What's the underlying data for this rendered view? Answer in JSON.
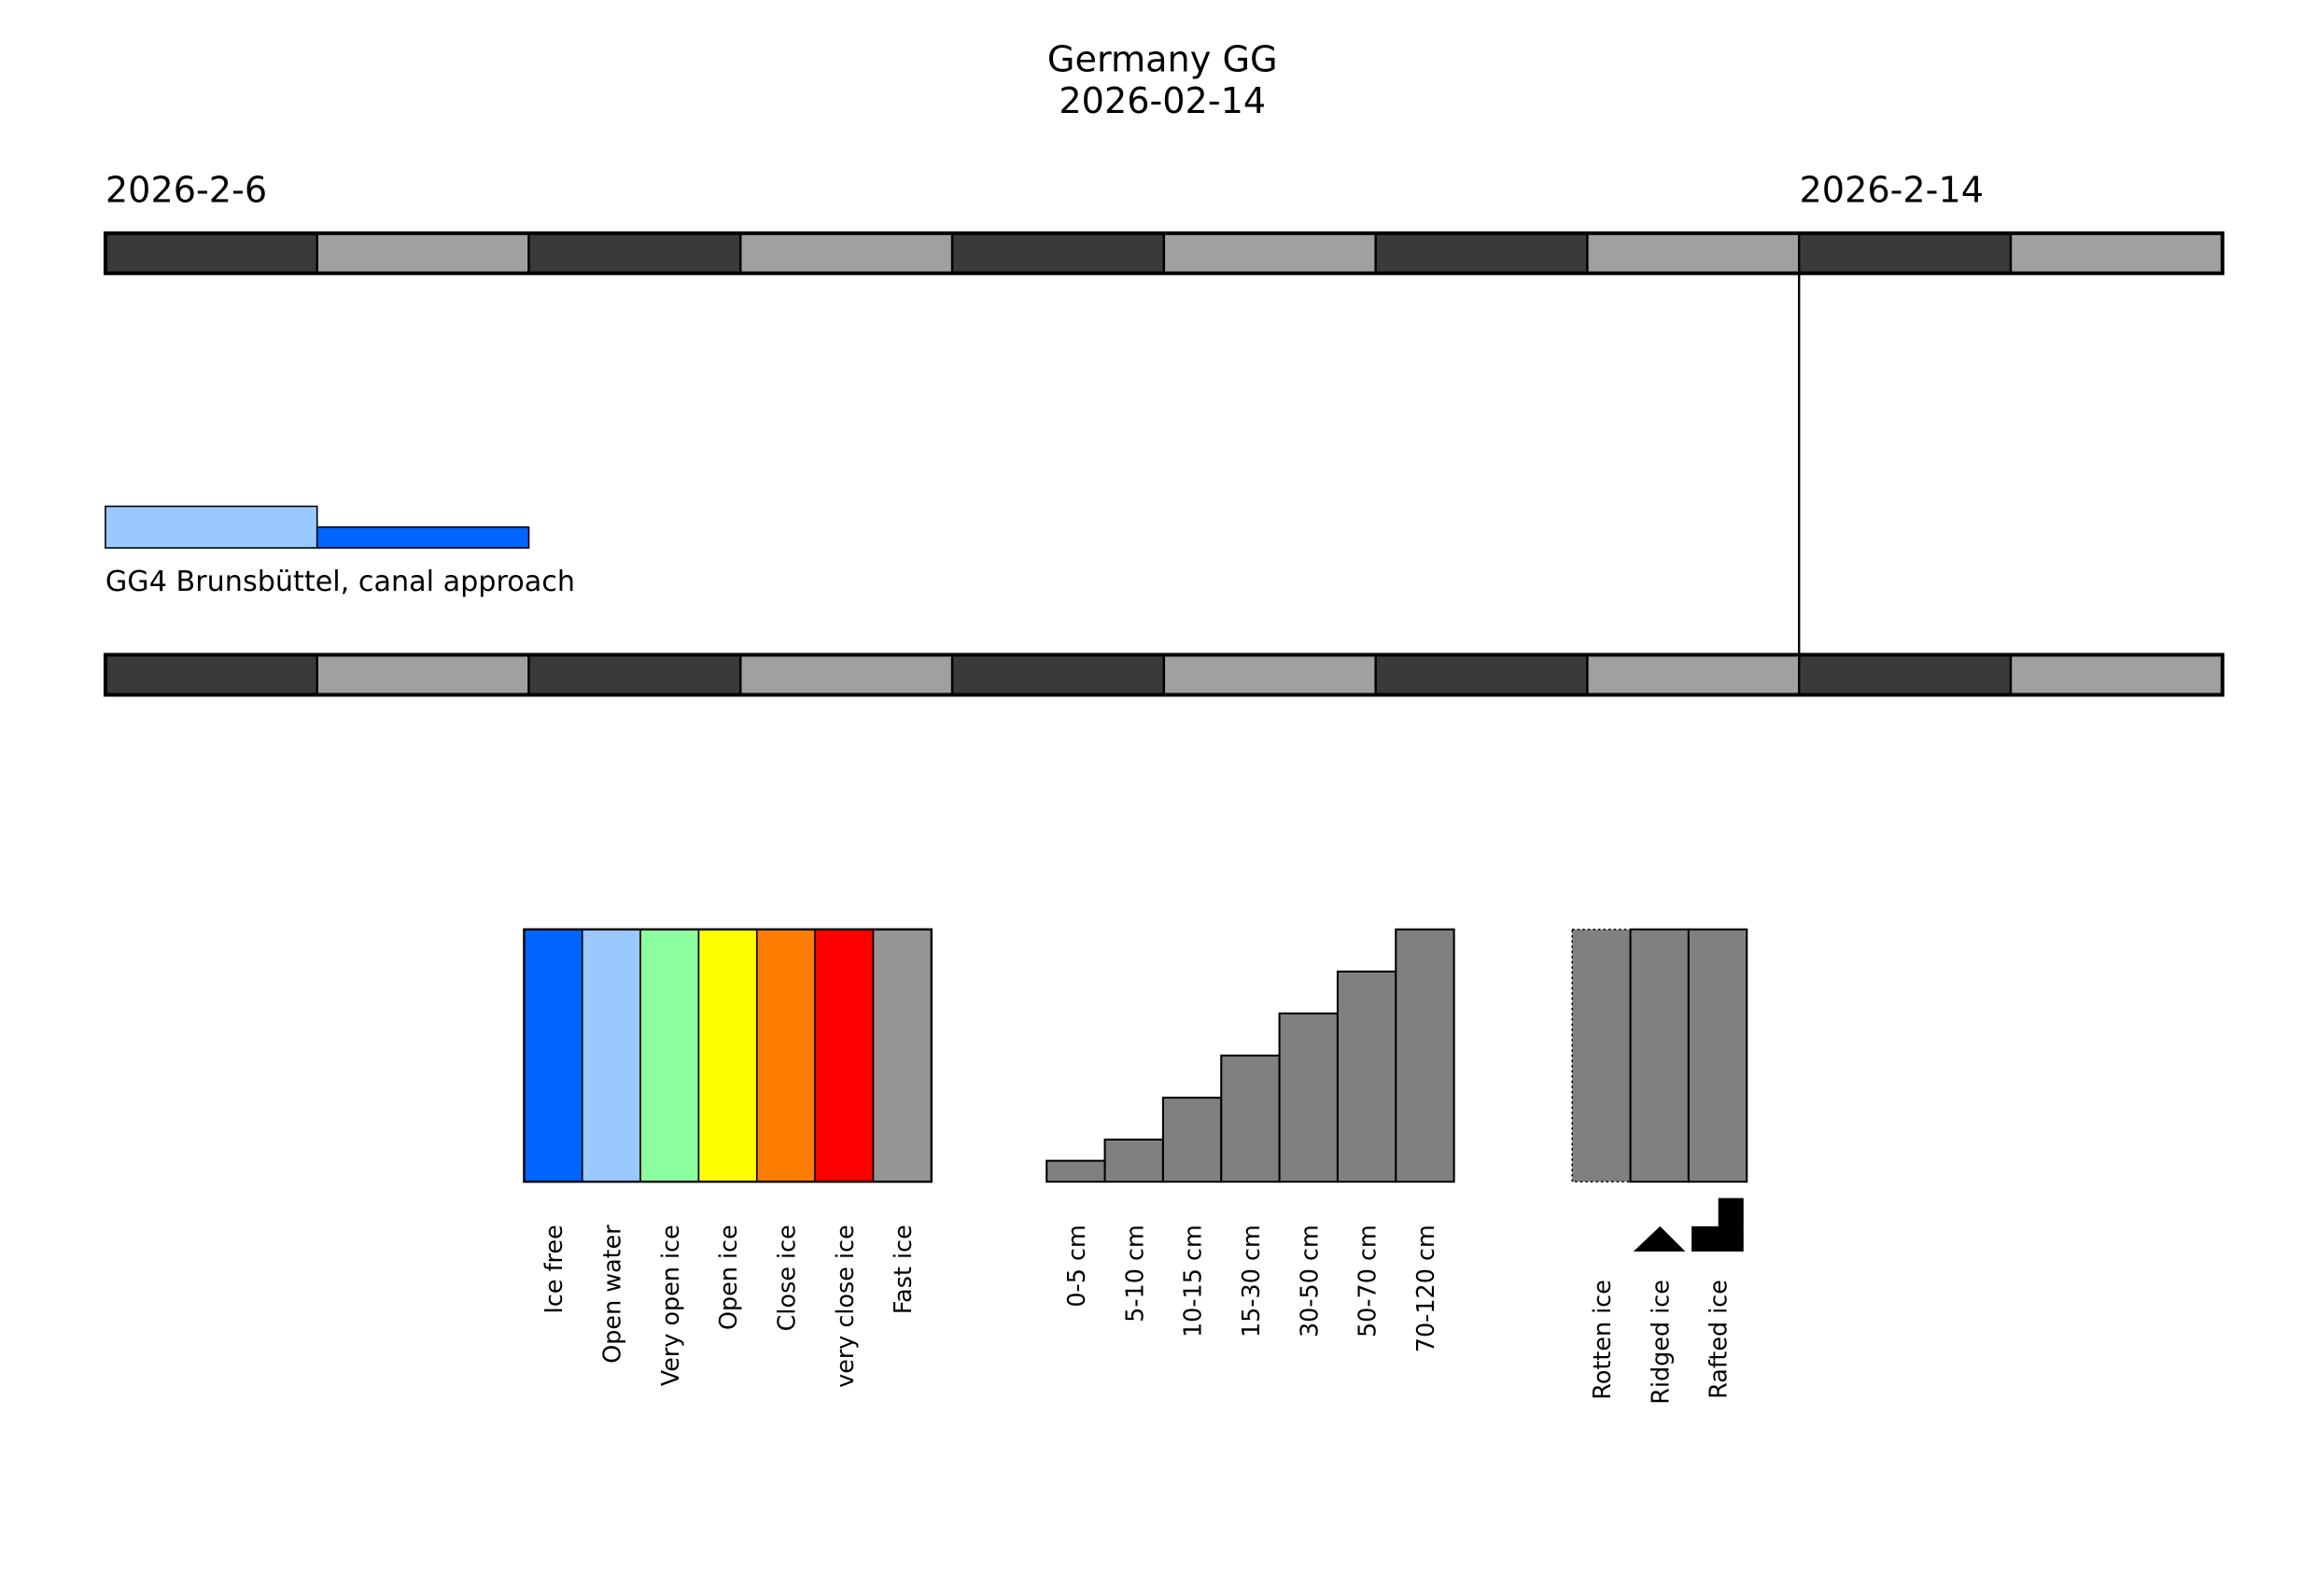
{
  "chart_data": {
    "type": "timeline",
    "title": "Germany GG",
    "subtitle": "2026-02-14",
    "start_label": "2026-2-6",
    "end_label": "2026-2-14",
    "segments": 10,
    "segment_colors": [
      "#3a3a3a",
      "#a0a0a0"
    ],
    "current_marker_segment": 8,
    "stations": [
      {
        "name": "GG4 Brunsbüttel, canal approach",
        "periods": [
          {
            "segment": 0,
            "category": "Open water",
            "color": "#99c9ff",
            "level": 1.0
          },
          {
            "segment": 1,
            "category": "Ice free",
            "color": "#0064ff",
            "level": 0.5
          }
        ]
      }
    ],
    "legend_concentration": [
      {
        "label": "Ice free",
        "color": "#0064ff"
      },
      {
        "label": "Open water",
        "color": "#99c9ff"
      },
      {
        "label": "Very open ice",
        "color": "#8cff9f"
      },
      {
        "label": "Open ice",
        "color": "#ffff00"
      },
      {
        "label": "Close ice",
        "color": "#ff7d00"
      },
      {
        "label": "very close ice",
        "color": "#ff0000"
      },
      {
        "label": "Fast ice",
        "color": "#969696"
      }
    ],
    "legend_thickness": [
      {
        "label": "0-5 cm",
        "level": 0.083
      },
      {
        "label": "5-10 cm",
        "level": 0.167
      },
      {
        "label": "10-15 cm",
        "level": 0.333
      },
      {
        "label": "15-30 cm",
        "level": 0.5
      },
      {
        "label": "30-50 cm",
        "level": 0.667
      },
      {
        "label": "50-70 cm",
        "level": 0.833
      },
      {
        "label": "70-120 cm",
        "level": 1.0
      }
    ],
    "legend_special": [
      {
        "label": "Rotten ice",
        "symbol": "dotted-border"
      },
      {
        "label": "Ridged ice",
        "symbol": "triangle-icon"
      },
      {
        "label": "Rafted ice",
        "symbol": "step-icon"
      }
    ],
    "thickness_color": "#808080"
  }
}
